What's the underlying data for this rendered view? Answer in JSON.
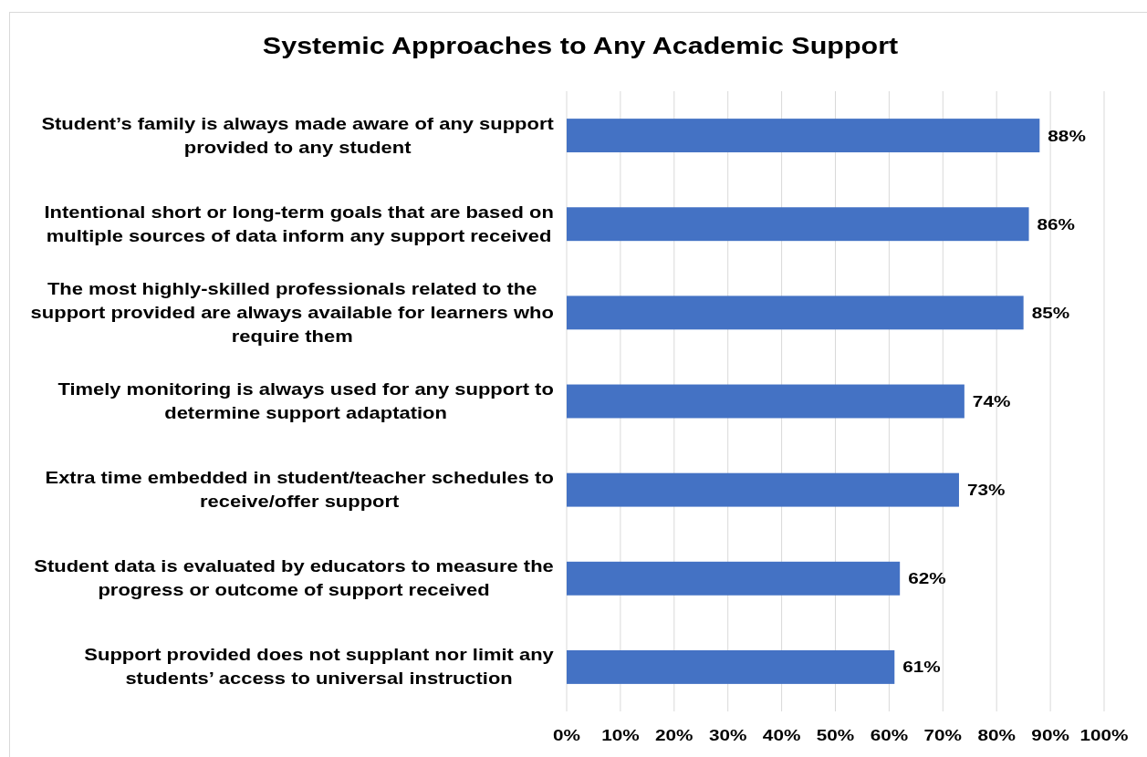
{
  "chart_data": {
    "type": "bar",
    "orientation": "horizontal",
    "title": "Systemic Approaches to Any Academic Support",
    "categories": [
      "Student’s family is always made aware of any support provided to any student",
      "Intentional short or long-term goals that are based on multiple sources of data inform any support received",
      "The most highly-skilled professionals related to the support provided are always available for learners who require them",
      "Timely monitoring is always used for any support to determine support adaptation",
      "Extra time embedded in student/teacher schedules to receive/offer support",
      "Student data is evaluated by educators to measure the progress or outcome of support received",
      "Support provided does not supplant nor limit any students’ access to universal instruction"
    ],
    "values": [
      88,
      86,
      85,
      74,
      73,
      62,
      61
    ],
    "value_labels": [
      "88%",
      "86%",
      "85%",
      "74%",
      "73%",
      "62%",
      "61%"
    ],
    "color": "#4472c4",
    "xlim": [
      0,
      100
    ],
    "xticks": [
      {
        "value": 0,
        "label": "0%"
      },
      {
        "value": 10,
        "label": "10%"
      },
      {
        "value": 20,
        "label": "20%"
      },
      {
        "value": 30,
        "label": "30%"
      },
      {
        "value": 40,
        "label": "40%"
      },
      {
        "value": 50,
        "label": "50%"
      },
      {
        "value": 60,
        "label": "60%"
      },
      {
        "value": 70,
        "label": "70%"
      },
      {
        "value": 80,
        "label": "80%"
      },
      {
        "value": 90,
        "label": "90%"
      },
      {
        "value": 100,
        "label": "100%"
      }
    ],
    "grid": "x"
  }
}
